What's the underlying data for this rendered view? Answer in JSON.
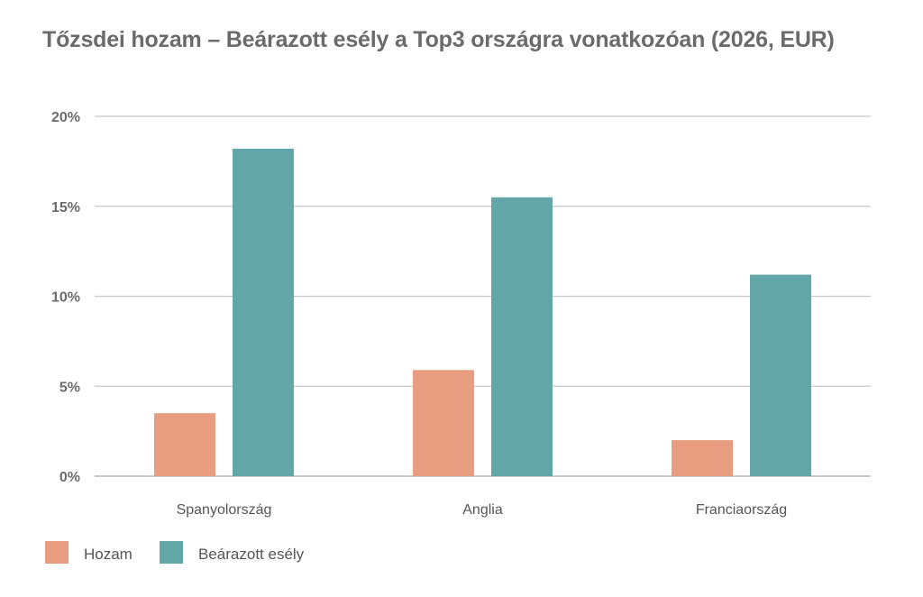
{
  "chart_data": {
    "type": "bar",
    "title": "Tőzsdei hozam – Beárazott esély a Top3 országra vonatkozóan (2026, EUR)",
    "categories": [
      "Spanyolország",
      "Anglia",
      "Franciaország"
    ],
    "series": [
      {
        "name": "Hozam",
        "values": [
          3.5,
          5.9,
          2.0
        ],
        "color": "#E89C80"
      },
      {
        "name": "Beárazott esély",
        "values": [
          18.2,
          15.5,
          11.2
        ],
        "color": "#62A6A7"
      }
    ],
    "ylim": [
      0,
      20
    ],
    "yticks": [
      0,
      5,
      10,
      15,
      20
    ],
    "ytick_labels": [
      "0%",
      "5%",
      "10%",
      "15%",
      "20%"
    ],
    "xlabel": "",
    "ylabel": "",
    "grid": true,
    "legend": "bottom-left"
  }
}
